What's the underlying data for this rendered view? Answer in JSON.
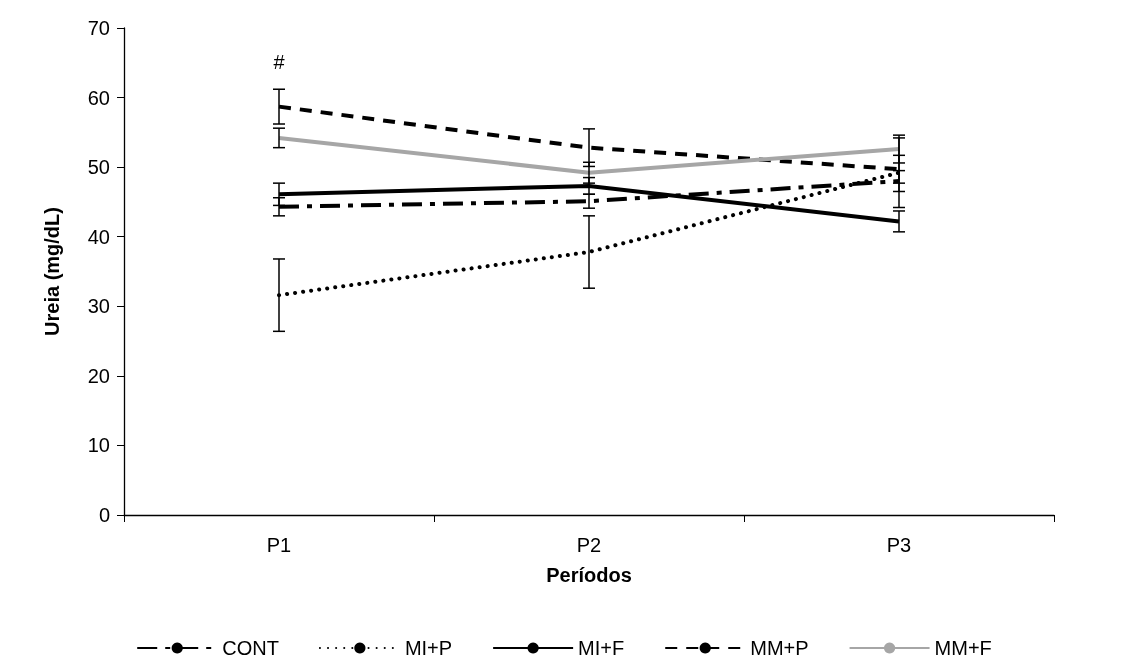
{
  "chart_data": {
    "type": "line",
    "xlabel": "Períodos",
    "ylabel": "Ureia (mg/dL)",
    "categories": [
      "P1",
      "P2",
      "P3"
    ],
    "ylim": [
      0,
      70
    ],
    "yticks": [
      0,
      10,
      20,
      30,
      40,
      50,
      60,
      70
    ],
    "grid": false,
    "legend": "bottom",
    "marker": "none",
    "series": [
      {
        "name": "CONT",
        "color": "#000000",
        "line_style": "dashdot",
        "values": [
          44.3,
          45.1,
          48.0
        ],
        "errors": [
          1.3,
          1.0,
          1.5
        ]
      },
      {
        "name": "MI+P",
        "color": "#000000",
        "line_style": "dotted",
        "values": [
          31.6,
          37.8,
          49.2
        ],
        "errors": [
          5.2,
          5.2,
          5.0
        ]
      },
      {
        "name": "MI+F",
        "color": "#000000",
        "line_style": "solid",
        "values": [
          46.1,
          47.3,
          42.2
        ],
        "errors": [
          1.6,
          1.2,
          1.5
        ]
      },
      {
        "name": "MM+P",
        "color": "#000000",
        "line_style": "dashed",
        "values": [
          58.7,
          52.8,
          49.7
        ],
        "errors": [
          2.5,
          2.7,
          2.0
        ]
      },
      {
        "name": "MM+F",
        "color": "#a6a6a6",
        "line_style": "solid",
        "values": [
          54.2,
          49.2,
          52.6
        ],
        "errors": [
          1.4,
          1.5,
          2.0
        ]
      }
    ],
    "annotations": [
      "#"
    ]
  }
}
